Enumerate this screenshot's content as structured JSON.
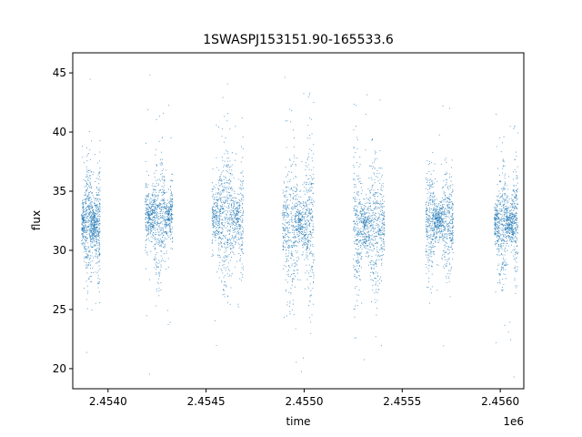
{
  "chart_data": {
    "type": "scatter",
    "title": "1SWASPJ153151.90-165533.6",
    "xlabel": "time",
    "ylabel": "flux",
    "x_offset_label": "1e6",
    "xlim": [
      2453820,
      2456120
    ],
    "ylim": [
      18.3,
      46.7
    ],
    "x_ticks": [
      2454000,
      2454500,
      2455000,
      2455500,
      2456000
    ],
    "x_tick_labels": [
      "2.4540",
      "2.4545",
      "2.4550",
      "2.4555",
      "2.4560"
    ],
    "y_ticks": [
      20,
      25,
      30,
      35,
      40,
      45
    ],
    "y_tick_labels": [
      "20",
      "25",
      "30",
      "35",
      "40",
      "45"
    ],
    "grid": false,
    "legend": "none",
    "point_color": "#1f77b4",
    "seasons": [
      {
        "start": 2453865,
        "end": 2453960,
        "center": 32.2,
        "spread": 2.2
      },
      {
        "start": 2454190,
        "end": 2454330,
        "center": 32.8,
        "spread": 2.3
      },
      {
        "start": 2454530,
        "end": 2454690,
        "center": 32.8,
        "spread": 2.8
      },
      {
        "start": 2454890,
        "end": 2455050,
        "center": 32.2,
        "spread": 2.7
      },
      {
        "start": 2455250,
        "end": 2455410,
        "center": 32.0,
        "spread": 2.6
      },
      {
        "start": 2455620,
        "end": 2455760,
        "center": 32.5,
        "spread": 1.8
      },
      {
        "start": 2455970,
        "end": 2456090,
        "center": 32.3,
        "spread": 2.0
      }
    ]
  }
}
